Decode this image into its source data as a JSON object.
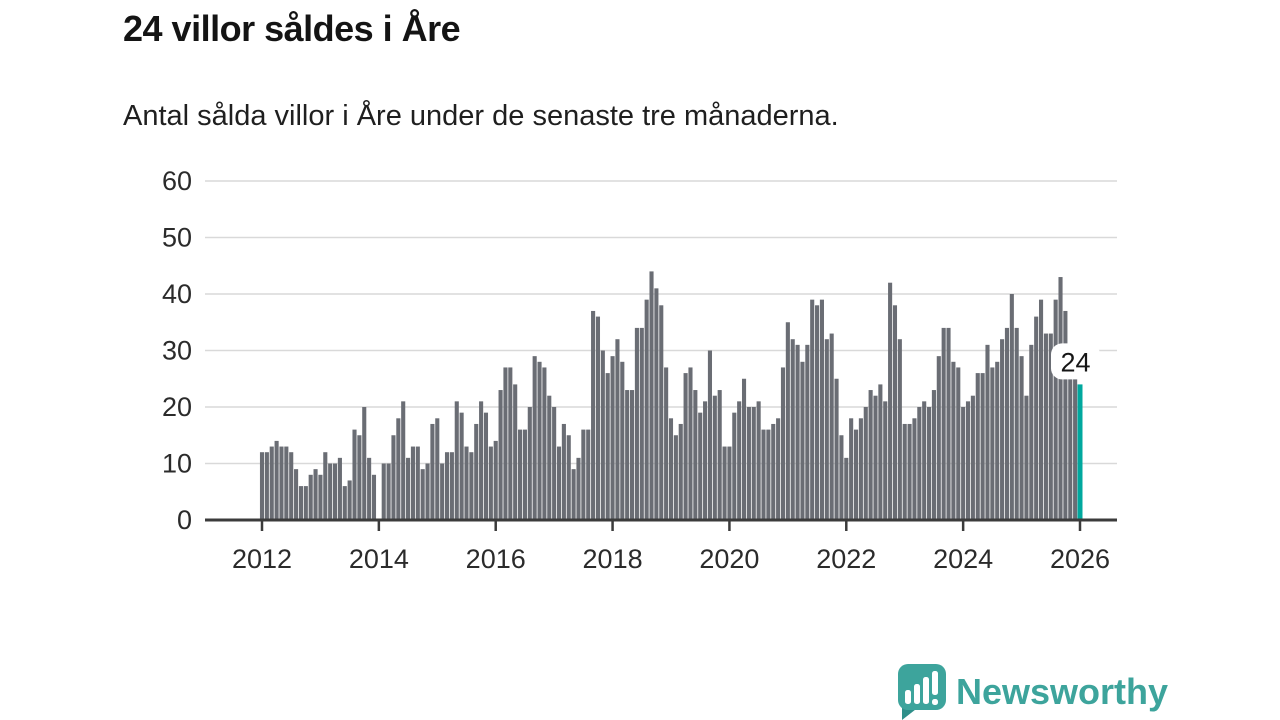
{
  "header": {
    "title": "24 villor såldes i Åre",
    "subtitle": "Antal sålda villor i Åre under de senaste tre månaderna."
  },
  "chart_data": {
    "type": "bar",
    "title": "24 villor såldes i Åre",
    "subtitle": "Antal sålda villor i Åre under de senaste tre månaderna.",
    "x_start_year": 2012,
    "x_start_month": 1,
    "frequency": "monthly",
    "values": [
      12,
      12,
      13,
      14,
      13,
      13,
      12,
      9,
      6,
      6,
      8,
      9,
      8,
      12,
      10,
      10,
      11,
      6,
      7,
      16,
      15,
      20,
      11,
      8,
      0,
      10,
      10,
      15,
      18,
      21,
      11,
      13,
      13,
      9,
      10,
      17,
      18,
      10,
      12,
      12,
      21,
      19,
      13,
      12,
      17,
      21,
      19,
      13,
      14,
      23,
      27,
      27,
      24,
      16,
      16,
      20,
      29,
      28,
      27,
      22,
      20,
      13,
      17,
      15,
      9,
      11,
      16,
      16,
      37,
      36,
      30,
      26,
      29,
      32,
      28,
      23,
      23,
      34,
      34,
      39,
      44,
      41,
      38,
      27,
      18,
      15,
      17,
      26,
      27,
      23,
      19,
      21,
      30,
      22,
      23,
      13,
      13,
      19,
      21,
      25,
      20,
      20,
      21,
      16,
      16,
      17,
      18,
      27,
      35,
      32,
      31,
      28,
      31,
      39,
      38,
      39,
      32,
      33,
      25,
      15,
      11,
      18,
      16,
      18,
      20,
      23,
      22,
      24,
      21,
      42,
      38,
      32,
      17,
      17,
      18,
      20,
      21,
      20,
      23,
      29,
      34,
      34,
      28,
      27,
      20,
      21,
      22,
      26,
      26,
      31,
      27,
      28,
      32,
      34,
      40,
      34,
      29,
      22,
      31,
      36,
      39,
      33,
      33,
      39,
      43,
      37,
      26,
      25,
      24
    ],
    "highlight": {
      "index": 168,
      "value": 24,
      "label": "24",
      "color": "#00a89e"
    },
    "bar_color": "#6a6d74",
    "grid": true,
    "grid_color": "#d9d9d9",
    "axis_color": "#3b3b3b",
    "tick_label_color": "#2b2b2b",
    "ylim": [
      0,
      60
    ],
    "yticks": [
      0,
      10,
      20,
      30,
      40,
      50,
      60
    ],
    "xticks": [
      2012,
      2014,
      2016,
      2018,
      2020,
      2022,
      2024,
      2026
    ],
    "xlabel": "",
    "ylabel": ""
  },
  "branding": {
    "logo_text": "Newsworthy",
    "brand_color": "#3da49c",
    "logo_icon": "bar-chart-speech-bubble"
  }
}
